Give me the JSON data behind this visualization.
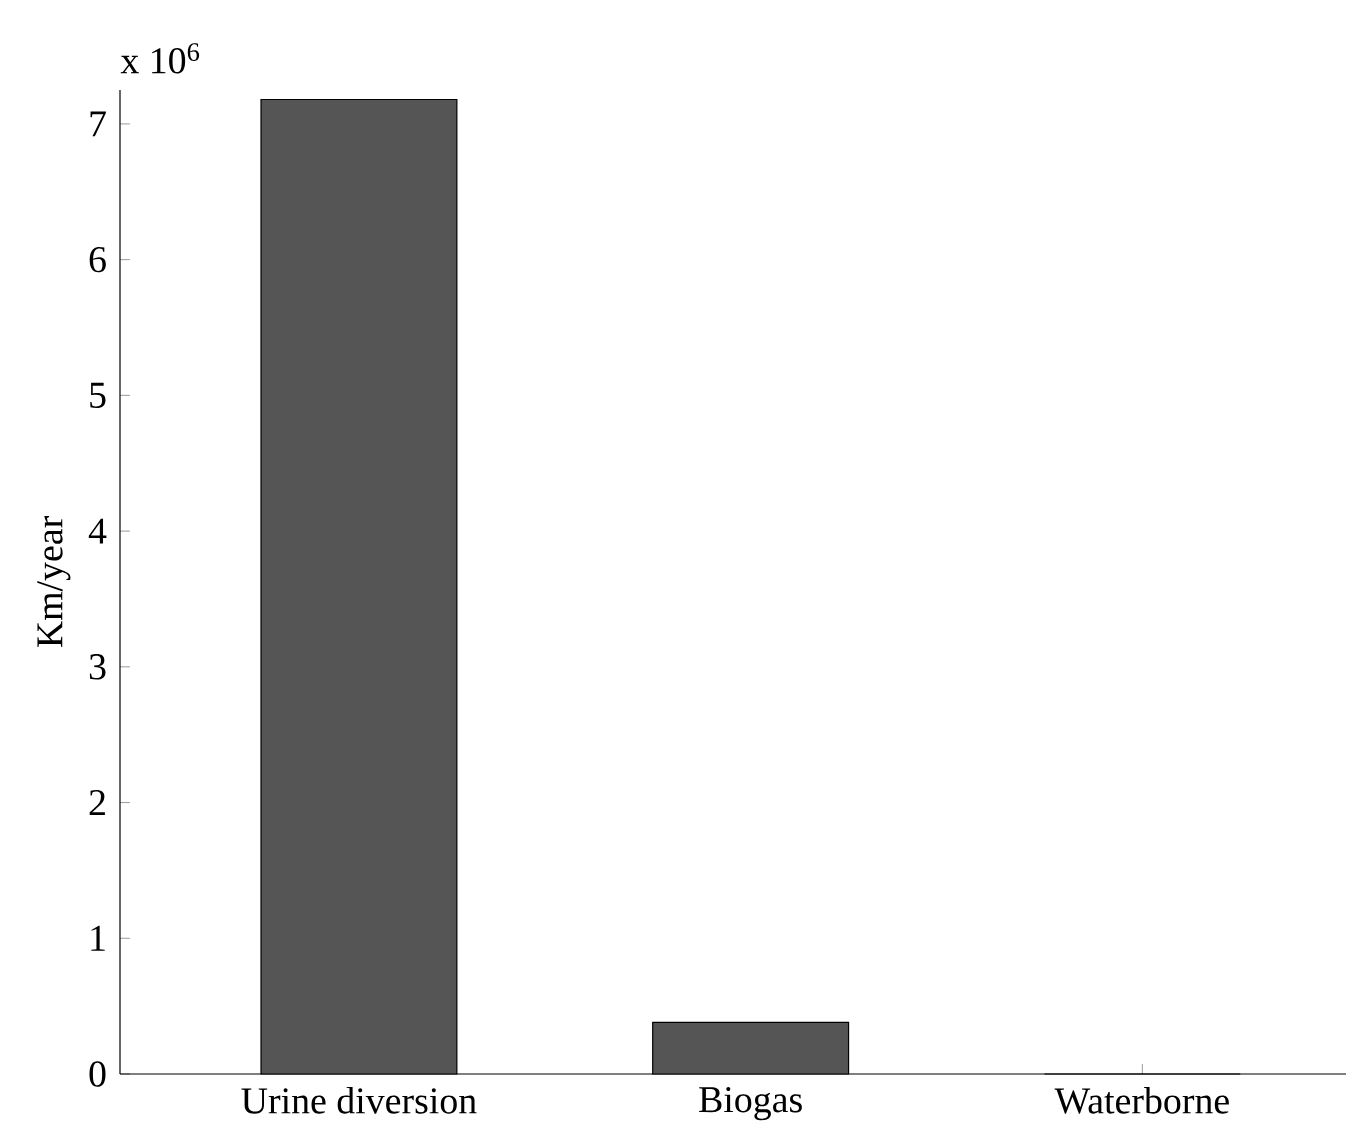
{
  "chart_data": {
    "type": "bar",
    "ylabel": "Km/year",
    "categories": [
      "Urine diversion",
      "Biogas",
      "Waterborne"
    ],
    "values": [
      7.18,
      0.38,
      0
    ],
    "color": "#555555",
    "ylim": [
      0,
      7.25
    ],
    "yticks": [
      0,
      1,
      2,
      3,
      4,
      5,
      6,
      7
    ],
    "annotations": [
      "x 10$^{6}$"
    ],
    "grid": false
  }
}
